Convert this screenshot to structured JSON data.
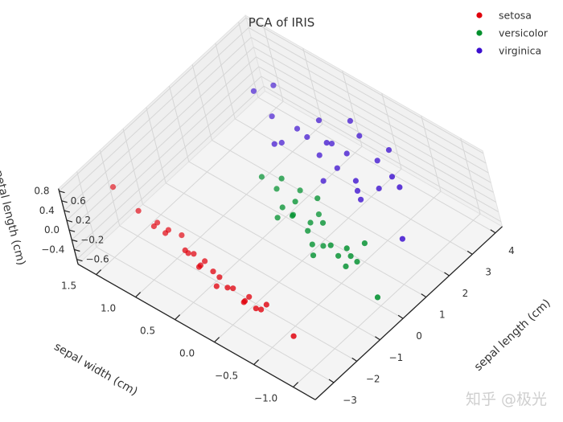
{
  "chart_data": {
    "type": "scatter3d",
    "title": "PCA of IRIS",
    "xlabel": "sepal length (cm)",
    "ylabel": "sepal width (cm)",
    "zlabel": "petal length (cm)",
    "xlim": [
      -3.8,
      4.3
    ],
    "ylim": [
      -1.28,
      1.73
    ],
    "zlim": [
      -0.7,
      0.85
    ],
    "xticks": [
      "-3",
      "-2",
      "-1",
      "0",
      "1",
      "2",
      "3",
      "4"
    ],
    "yticks": [
      "1.5",
      "1.0",
      "0.5",
      "0.0",
      "-0.5",
      "-1.0"
    ],
    "zticks": [
      "0.8",
      "0.6",
      "0.4",
      "0.2",
      "0.0",
      "-0.2",
      "-0.4",
      "-0.6"
    ],
    "grid": true,
    "legend_position": "top-right",
    "series": [
      {
        "name": "setosa",
        "color": "#e0000c",
        "points": [
          [
            -1.95,
            1.7,
            0.1
          ],
          [
            -2.1,
            1.35,
            0.0
          ],
          [
            -2.05,
            1.2,
            -0.2
          ],
          [
            -2.25,
            1.05,
            0.1
          ],
          [
            -2.3,
            0.95,
            0.0
          ],
          [
            -2.4,
            0.85,
            0.2
          ],
          [
            -2.35,
            0.7,
            -0.1
          ],
          [
            -2.5,
            0.6,
            0.0
          ],
          [
            -2.55,
            0.5,
            0.1
          ],
          [
            -2.6,
            0.45,
            -0.1
          ],
          [
            -2.65,
            0.4,
            0.0
          ],
          [
            -2.7,
            0.3,
            0.2
          ],
          [
            -2.62,
            0.25,
            0.0
          ],
          [
            -2.75,
            0.2,
            -0.2
          ],
          [
            -2.8,
            0.1,
            0.1
          ],
          [
            -2.85,
            0.0,
            0.0
          ],
          [
            -2.9,
            -0.1,
            0.1
          ],
          [
            -2.88,
            -0.2,
            -0.1
          ],
          [
            -2.95,
            -0.25,
            0.0
          ],
          [
            -3.0,
            -0.35,
            0.2
          ],
          [
            -2.98,
            -0.4,
            0.0
          ],
          [
            -3.05,
            -0.5,
            0.1
          ],
          [
            -2.7,
            -0.45,
            0.0
          ],
          [
            -3.16,
            -0.93,
            0.0
          ],
          [
            -2.45,
            0.65,
            0.3
          ]
        ]
      },
      {
        "name": "versicolor",
        "color": "#00902e",
        "points": [
          [
            0.92,
            0.67,
            0.0
          ],
          [
            0.7,
            0.4,
            0.1
          ],
          [
            0.5,
            0.3,
            -0.1
          ],
          [
            0.3,
            0.1,
            0.0
          ],
          [
            0.1,
            0.0,
            0.2
          ],
          [
            0.4,
            -0.1,
            0.0
          ],
          [
            0.0,
            -0.2,
            0.1
          ],
          [
            -0.2,
            -0.3,
            0.0
          ],
          [
            0.2,
            -0.4,
            -0.1
          ],
          [
            -0.3,
            -0.5,
            0.2
          ],
          [
            0.6,
            -0.2,
            0.0
          ],
          [
            0.8,
            0.1,
            0.3
          ],
          [
            1.0,
            0.3,
            -0.2
          ],
          [
            -0.1,
            -0.6,
            0.0
          ],
          [
            -0.4,
            -0.8,
            0.1
          ],
          [
            0.1,
            -0.7,
            0.0
          ],
          [
            -0.65,
            -1.26,
            0.0
          ],
          [
            0.5,
            -0.5,
            -0.2
          ],
          [
            1.2,
            0.5,
            0.0
          ],
          [
            1.1,
            0.0,
            0.1
          ],
          [
            -0.5,
            -0.4,
            0.0
          ],
          [
            0.3,
            -0.3,
            0.4
          ],
          [
            0.0,
            0.2,
            0.0
          ],
          [
            -0.2,
            -0.9,
            0.2
          ],
          [
            0.7,
            -0.7,
            0.0
          ]
        ]
      },
      {
        "name": "virginica",
        "color": "#3c0fcf",
        "points": [
          [
            3.27,
            1.46,
            0.0
          ],
          [
            3.4,
            1.2,
            0.3
          ],
          [
            2.9,
            0.8,
            0.0
          ],
          [
            2.7,
            0.6,
            0.1
          ],
          [
            3.1,
            0.5,
            -0.1
          ],
          [
            2.5,
            0.4,
            0.0
          ],
          [
            2.8,
            0.3,
            0.2
          ],
          [
            3.0,
            0.2,
            0.0
          ],
          [
            2.3,
            0.1,
            0.1
          ],
          [
            2.6,
            0.0,
            -0.2
          ],
          [
            4.0,
            0.45,
            0.0
          ],
          [
            3.6,
            0.2,
            0.1
          ],
          [
            3.3,
            -0.1,
            0.0
          ],
          [
            2.1,
            -0.2,
            0.0
          ],
          [
            2.4,
            -0.4,
            0.1
          ],
          [
            1.9,
            -0.3,
            0.0
          ],
          [
            1.45,
            -0.96,
            0.0
          ],
          [
            2.0,
            0.7,
            0.2
          ],
          [
            3.8,
            -0.1,
            0.0
          ],
          [
            2.2,
            0.9,
            -0.1
          ],
          [
            3.5,
            0.7,
            0.0
          ],
          [
            1.7,
            0.1,
            0.1
          ],
          [
            2.9,
            -0.5,
            0.0
          ],
          [
            2.6,
            1.0,
            0.2
          ],
          [
            3.2,
            -0.3,
            -0.1
          ]
        ]
      }
    ]
  },
  "watermark": "知乎 @极光"
}
